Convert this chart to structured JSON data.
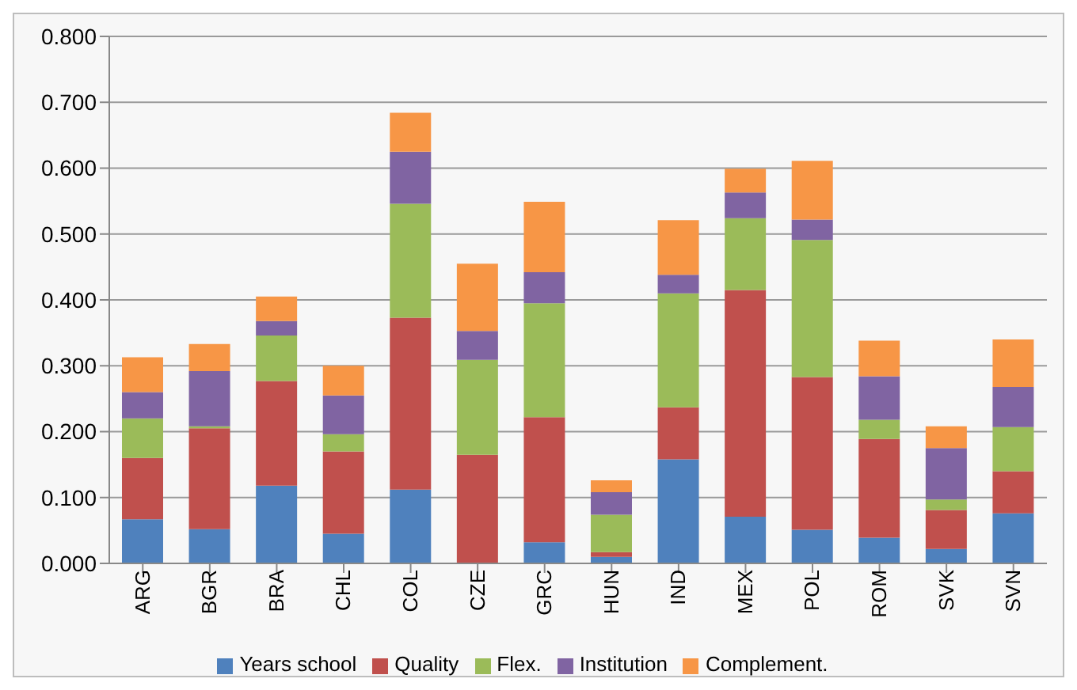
{
  "chart_data": {
    "type": "bar",
    "stacked": true,
    "categories": [
      "ARG",
      "BGR",
      "BRA",
      "CHL",
      "COL",
      "CZE",
      "GRC",
      "HUN",
      "IND",
      "MEX",
      "POL",
      "ROM",
      "SVK",
      "SVN"
    ],
    "series": [
      {
        "name": "Years school",
        "color": "#4f81bd",
        "values": [
          0.067,
          0.052,
          0.118,
          0.045,
          0.112,
          0,
          0.032,
          0.01,
          0.158,
          0.071,
          0.051,
          0.039,
          0.022,
          0.076
        ]
      },
      {
        "name": "Quality",
        "color": "#c0504d",
        "values": [
          0.093,
          0.153,
          0.159,
          0.125,
          0.261,
          0.165,
          0.19,
          0.007,
          0.079,
          0.344,
          0.232,
          0.15,
          0.059,
          0.064
        ]
      },
      {
        "name": "Flex.",
        "color": "#9bbb59",
        "values": [
          0.06,
          0.003,
          0.069,
          0.026,
          0.173,
          0.144,
          0.173,
          0.057,
          0.173,
          0.109,
          0.208,
          0.029,
          0.016,
          0.067
        ]
      },
      {
        "name": "Institution",
        "color": "#8064a2",
        "values": [
          0.04,
          0.084,
          0.022,
          0.059,
          0.079,
          0.044,
          0.047,
          0.034,
          0.028,
          0.039,
          0.031,
          0.066,
          0.078,
          0.061
        ]
      },
      {
        "name": "Complement.",
        "color": "#f79646",
        "values": [
          0.053,
          0.041,
          0.037,
          0.045,
          0.059,
          0.102,
          0.107,
          0.018,
          0.083,
          0.036,
          0.089,
          0.054,
          0.033,
          0.072
        ]
      }
    ],
    "ylim": [
      0,
      0.8
    ],
    "yticks": [
      {
        "value": 0,
        "label": "0.000"
      },
      {
        "value": 0.1,
        "label": "0.100"
      },
      {
        "value": 0.2,
        "label": "0.200"
      },
      {
        "value": 0.3,
        "label": "0.300"
      },
      {
        "value": 0.4,
        "label": "0.400"
      },
      {
        "value": 0.5,
        "label": "0.500"
      },
      {
        "value": 0.6,
        "label": "0.600"
      },
      {
        "value": 0.7,
        "label": "0.700"
      },
      {
        "value": 0.8,
        "label": "0.800"
      }
    ],
    "grid": "y",
    "legend": "bottom"
  }
}
